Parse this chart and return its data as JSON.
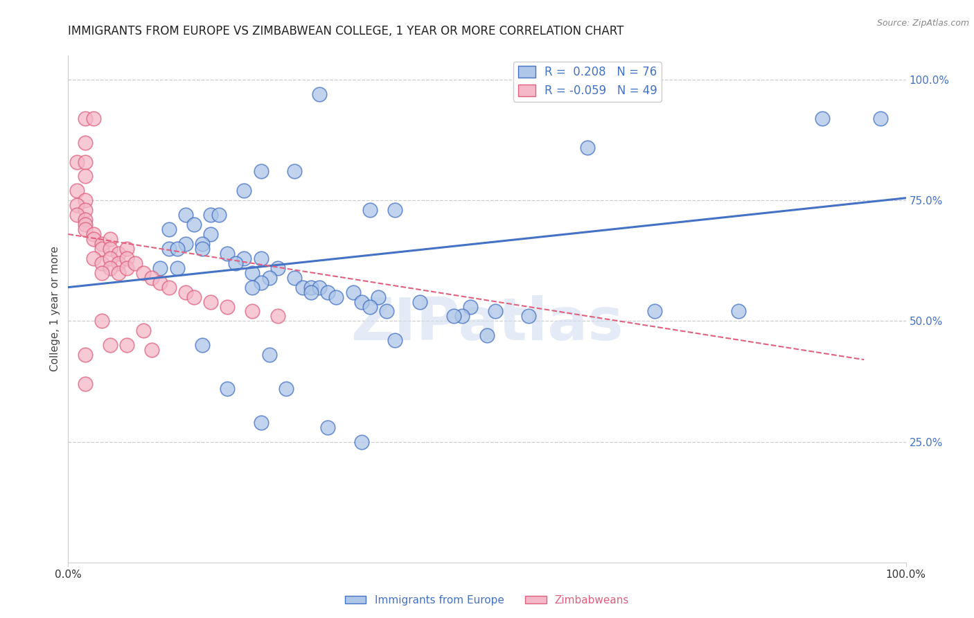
{
  "title": "IMMIGRANTS FROM EUROPE VS ZIMBABWEAN COLLEGE, 1 YEAR OR MORE CORRELATION CHART",
  "source_text": "Source: ZipAtlas.com",
  "ylabel": "College, 1 year or more",
  "xlim": [
    0.0,
    1.0
  ],
  "ylim": [
    0.0,
    1.05
  ],
  "yticks": [
    0.25,
    0.5,
    0.75,
    1.0
  ],
  "ytick_labels": [
    "25.0%",
    "50.0%",
    "75.0%",
    "100.0%"
  ],
  "legend_labels_bottom": [
    "Immigrants from Europe",
    "Zimbabweans"
  ],
  "blue_scatter": [
    [
      0.3,
      0.97
    ],
    [
      0.9,
      0.92
    ],
    [
      0.97,
      0.92
    ],
    [
      0.62,
      0.86
    ],
    [
      0.23,
      0.81
    ],
    [
      0.27,
      0.81
    ],
    [
      0.21,
      0.77
    ],
    [
      0.36,
      0.73
    ],
    [
      0.39,
      0.73
    ],
    [
      0.14,
      0.72
    ],
    [
      0.17,
      0.72
    ],
    [
      0.18,
      0.72
    ],
    [
      0.15,
      0.7
    ],
    [
      0.12,
      0.69
    ],
    [
      0.17,
      0.68
    ],
    [
      0.14,
      0.66
    ],
    [
      0.16,
      0.66
    ],
    [
      0.12,
      0.65
    ],
    [
      0.13,
      0.65
    ],
    [
      0.16,
      0.65
    ],
    [
      0.19,
      0.64
    ],
    [
      0.21,
      0.63
    ],
    [
      0.23,
      0.63
    ],
    [
      0.2,
      0.62
    ],
    [
      0.11,
      0.61
    ],
    [
      0.13,
      0.61
    ],
    [
      0.25,
      0.61
    ],
    [
      0.22,
      0.6
    ],
    [
      0.24,
      0.59
    ],
    [
      0.27,
      0.59
    ],
    [
      0.23,
      0.58
    ],
    [
      0.22,
      0.57
    ],
    [
      0.28,
      0.57
    ],
    [
      0.29,
      0.57
    ],
    [
      0.3,
      0.57
    ],
    [
      0.29,
      0.56
    ],
    [
      0.31,
      0.56
    ],
    [
      0.34,
      0.56
    ],
    [
      0.32,
      0.55
    ],
    [
      0.37,
      0.55
    ],
    [
      0.35,
      0.54
    ],
    [
      0.42,
      0.54
    ],
    [
      0.36,
      0.53
    ],
    [
      0.48,
      0.53
    ],
    [
      0.38,
      0.52
    ],
    [
      0.51,
      0.52
    ],
    [
      0.47,
      0.51
    ],
    [
      0.55,
      0.51
    ],
    [
      0.16,
      0.45
    ],
    [
      0.24,
      0.43
    ],
    [
      0.19,
      0.36
    ],
    [
      0.26,
      0.36
    ],
    [
      0.23,
      0.29
    ],
    [
      0.31,
      0.28
    ],
    [
      0.35,
      0.25
    ],
    [
      0.46,
      0.51
    ],
    [
      0.5,
      0.47
    ],
    [
      0.39,
      0.46
    ],
    [
      0.7,
      0.52
    ],
    [
      0.8,
      0.52
    ]
  ],
  "pink_scatter": [
    [
      0.02,
      0.92
    ],
    [
      0.03,
      0.92
    ],
    [
      0.02,
      0.87
    ],
    [
      0.01,
      0.83
    ],
    [
      0.02,
      0.83
    ],
    [
      0.02,
      0.8
    ],
    [
      0.01,
      0.77
    ],
    [
      0.02,
      0.75
    ],
    [
      0.01,
      0.74
    ],
    [
      0.02,
      0.73
    ],
    [
      0.01,
      0.72
    ],
    [
      0.02,
      0.71
    ],
    [
      0.02,
      0.7
    ],
    [
      0.02,
      0.69
    ],
    [
      0.03,
      0.68
    ],
    [
      0.03,
      0.67
    ],
    [
      0.04,
      0.66
    ],
    [
      0.04,
      0.65
    ],
    [
      0.03,
      0.63
    ],
    [
      0.04,
      0.62
    ],
    [
      0.05,
      0.67
    ],
    [
      0.05,
      0.65
    ],
    [
      0.06,
      0.64
    ],
    [
      0.05,
      0.63
    ],
    [
      0.06,
      0.62
    ],
    [
      0.05,
      0.61
    ],
    [
      0.06,
      0.6
    ],
    [
      0.04,
      0.6
    ],
    [
      0.07,
      0.65
    ],
    [
      0.07,
      0.63
    ],
    [
      0.07,
      0.61
    ],
    [
      0.08,
      0.62
    ],
    [
      0.09,
      0.6
    ],
    [
      0.1,
      0.59
    ],
    [
      0.11,
      0.58
    ],
    [
      0.12,
      0.57
    ],
    [
      0.14,
      0.56
    ],
    [
      0.15,
      0.55
    ],
    [
      0.17,
      0.54
    ],
    [
      0.19,
      0.53
    ],
    [
      0.22,
      0.52
    ],
    [
      0.25,
      0.51
    ],
    [
      0.04,
      0.5
    ],
    [
      0.09,
      0.48
    ],
    [
      0.05,
      0.45
    ],
    [
      0.07,
      0.45
    ],
    [
      0.1,
      0.44
    ],
    [
      0.02,
      0.43
    ],
    [
      0.02,
      0.37
    ]
  ],
  "blue_line_x": [
    0.0,
    1.0
  ],
  "blue_line_y": [
    0.57,
    0.755
  ],
  "pink_line_x": [
    0.0,
    0.95
  ],
  "pink_line_y": [
    0.68,
    0.42
  ],
  "blue_color": "#4472c4",
  "pink_color": "#e0607e",
  "blue_fill": "#aec6e8",
  "pink_fill": "#f4b8c8",
  "grid_color": "#cccccc",
  "watermark": "ZIPatlas",
  "background_color": "#ffffff",
  "title_color": "#222222",
  "axis_label_color": "#555555",
  "right_axis_color": "#4472c4",
  "title_fontsize": 12,
  "label_fontsize": 11,
  "tick_fontsize": 11
}
